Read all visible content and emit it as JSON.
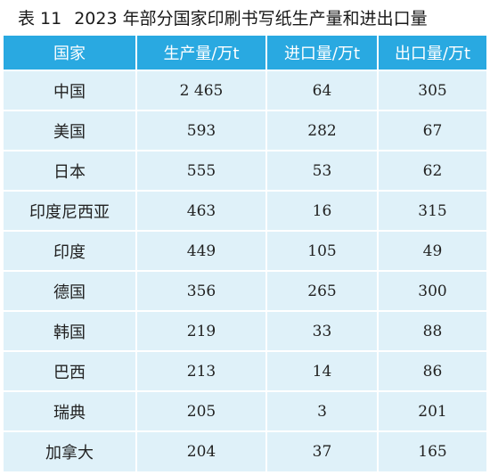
{
  "table": {
    "label": "表 11",
    "title": "2023 年部分国家印刷书写纸生产量和进出口量",
    "headers": [
      "国家",
      "生产量/万t",
      "进口量/万t",
      "出口量/万t"
    ],
    "rows": [
      {
        "country": "中国",
        "production": "2 465",
        "import": "64",
        "export": "305"
      },
      {
        "country": "美国",
        "production": "593",
        "import": "282",
        "export": "67"
      },
      {
        "country": "日本",
        "production": "555",
        "import": "53",
        "export": "62"
      },
      {
        "country": "印度尼西亚",
        "production": "463",
        "import": "16",
        "export": "315"
      },
      {
        "country": "印度",
        "production": "449",
        "import": "105",
        "export": "49"
      },
      {
        "country": "德国",
        "production": "356",
        "import": "265",
        "export": "300"
      },
      {
        "country": "韩国",
        "production": "219",
        "import": "33",
        "export": "88"
      },
      {
        "country": "巴西",
        "production": "213",
        "import": "14",
        "export": "86"
      },
      {
        "country": "瑞典",
        "production": "205",
        "import": "3",
        "export": "201"
      },
      {
        "country": "加拿大",
        "production": "204",
        "import": "37",
        "export": "165"
      }
    ]
  },
  "colors": {
    "header_bg": "#29a9e1",
    "row_bg": "#dff1f9"
  }
}
